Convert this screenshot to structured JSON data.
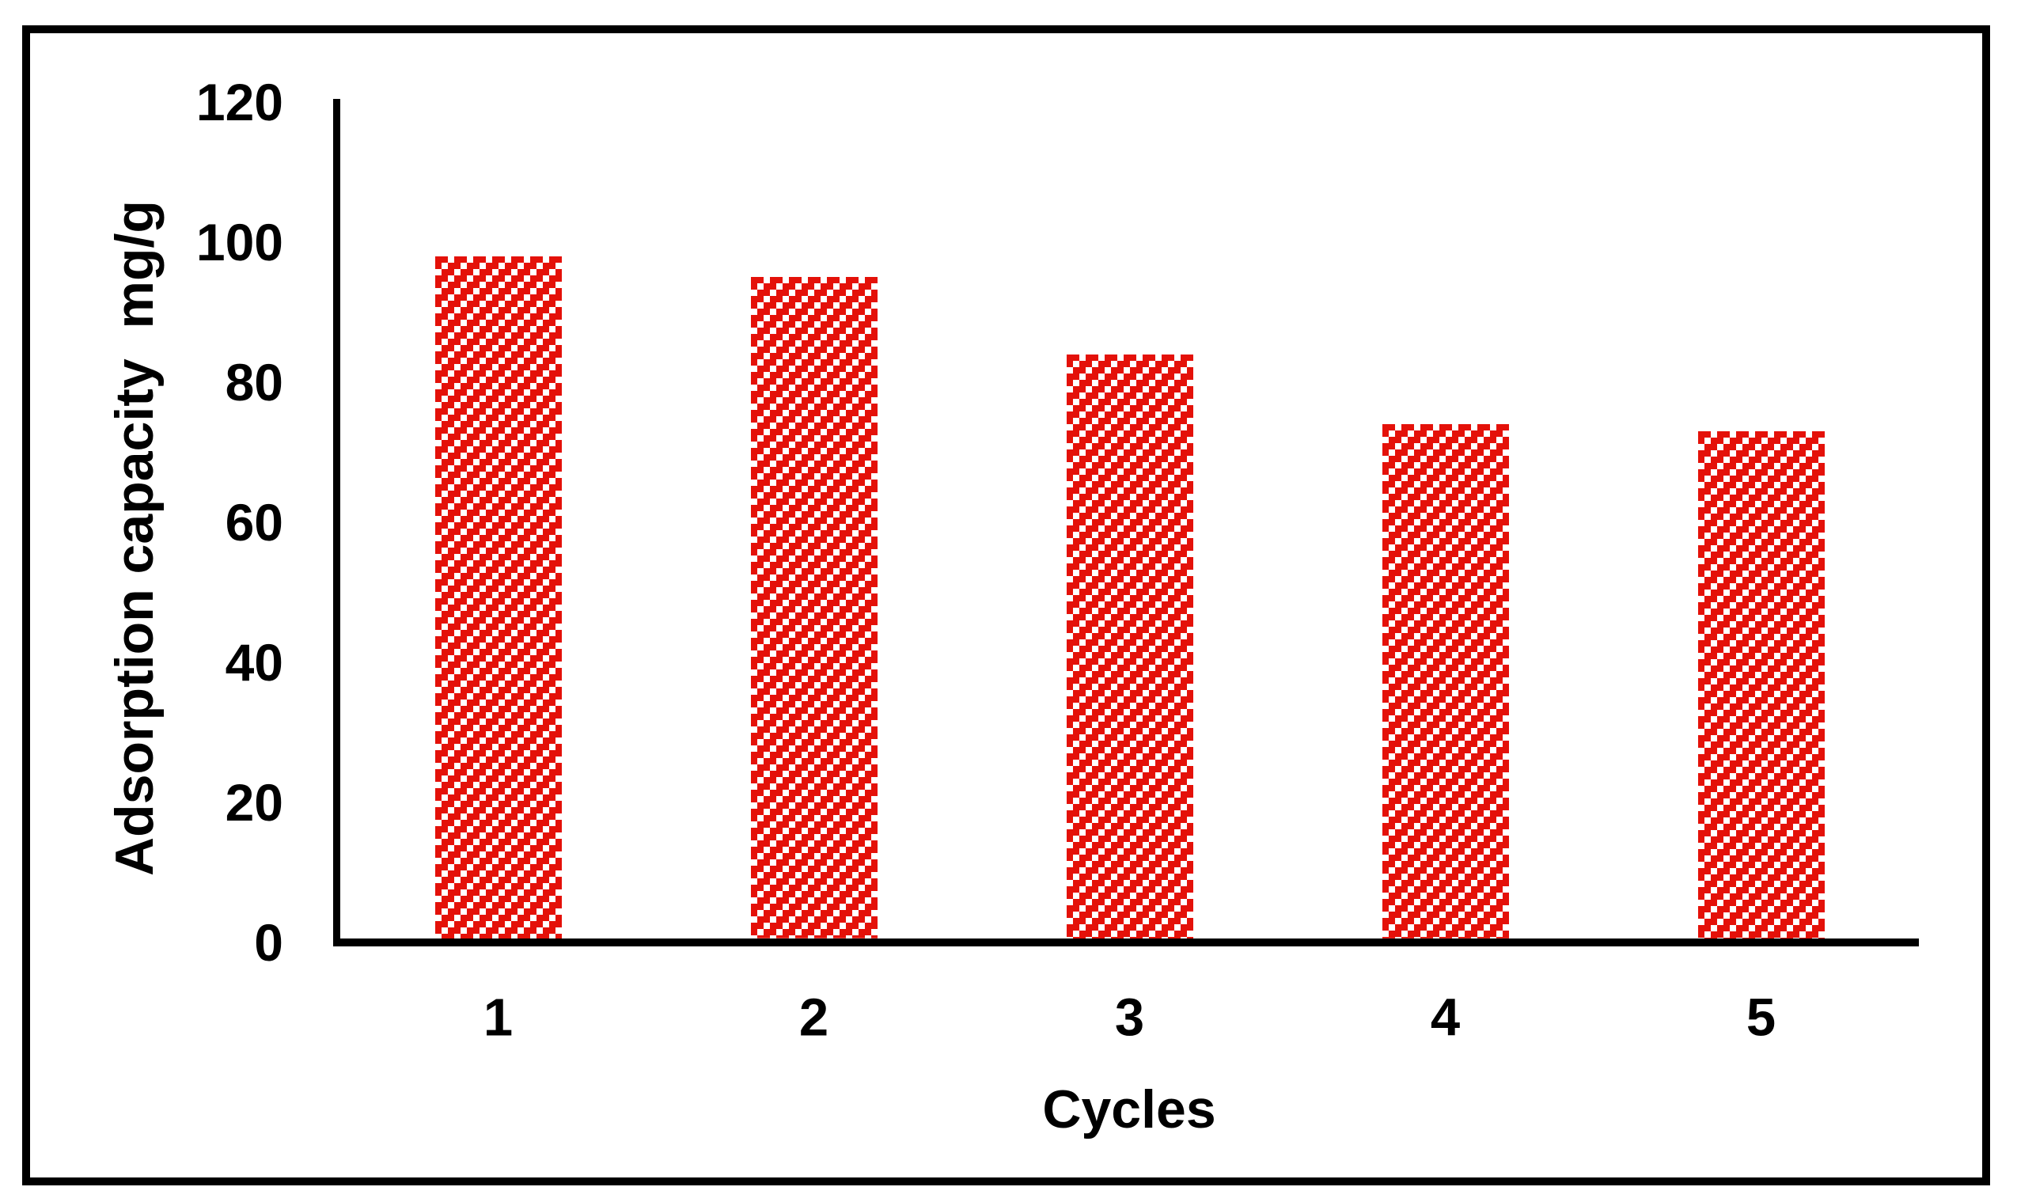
{
  "chart_data": {
    "type": "bar",
    "title": "",
    "categories": [
      "1",
      "2",
      "3",
      "4",
      "5"
    ],
    "values": [
      98,
      95,
      84,
      74,
      73
    ],
    "xlabel": "Cycles",
    "ylabel": "Adsorption capacity  mg/g",
    "ylim": [
      0,
      120
    ],
    "yticks": [
      0,
      20,
      40,
      60,
      80,
      100,
      120
    ],
    "grid": false,
    "legend": false,
    "bar_fill_pattern": "upward-diagonal-hatch",
    "bar_color": "#e41109",
    "pattern_background": "#ffffff",
    "axis_color": "#000000",
    "text_color": "#000000",
    "figure_border_color": "#000000"
  }
}
